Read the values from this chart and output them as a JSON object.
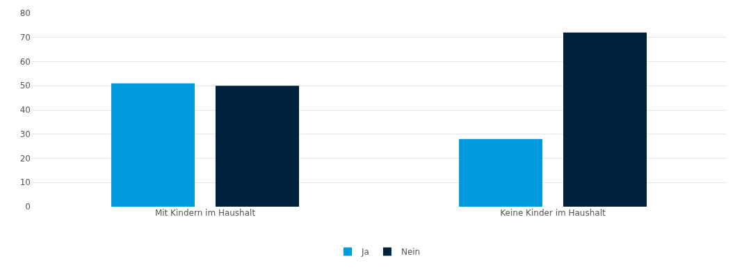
{
  "chart_data": {
    "type": "bar",
    "categories": [
      "Mit Kindern im Haushalt",
      "Keine Kinder im Haushalt"
    ],
    "series": [
      {
        "name": "Ja",
        "color": "#009bde",
        "values": [
          51,
          28
        ]
      },
      {
        "name": "Nein",
        "color": "#00203f",
        "values": [
          50,
          72
        ]
      }
    ],
    "ylim": [
      0,
      80
    ],
    "yticks": [
      0,
      10,
      20,
      30,
      40,
      50,
      60,
      70,
      80
    ],
    "grid": "y",
    "legend": "bottom"
  }
}
